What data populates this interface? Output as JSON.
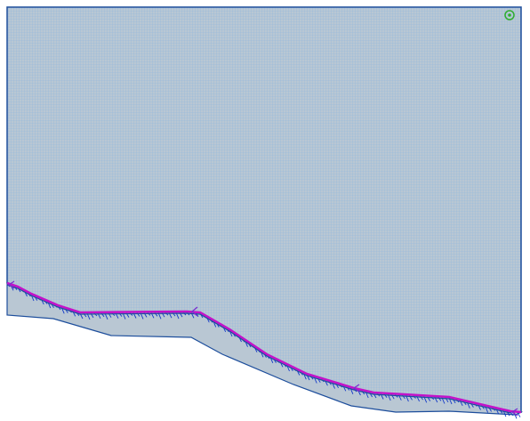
{
  "viewer": {
    "mesh_fill": "#b9c7d3",
    "grid_line": "#8fb7de",
    "boundary_stroke": "#1d4e9c",
    "profile_stroke": "#c312c9",
    "marker_color": "#2fae2f",
    "vector_color": "#1238c8",
    "icons": {
      "corner_marker": "target-icon",
      "vertex_marker": "arrowhead-icon"
    }
  }
}
